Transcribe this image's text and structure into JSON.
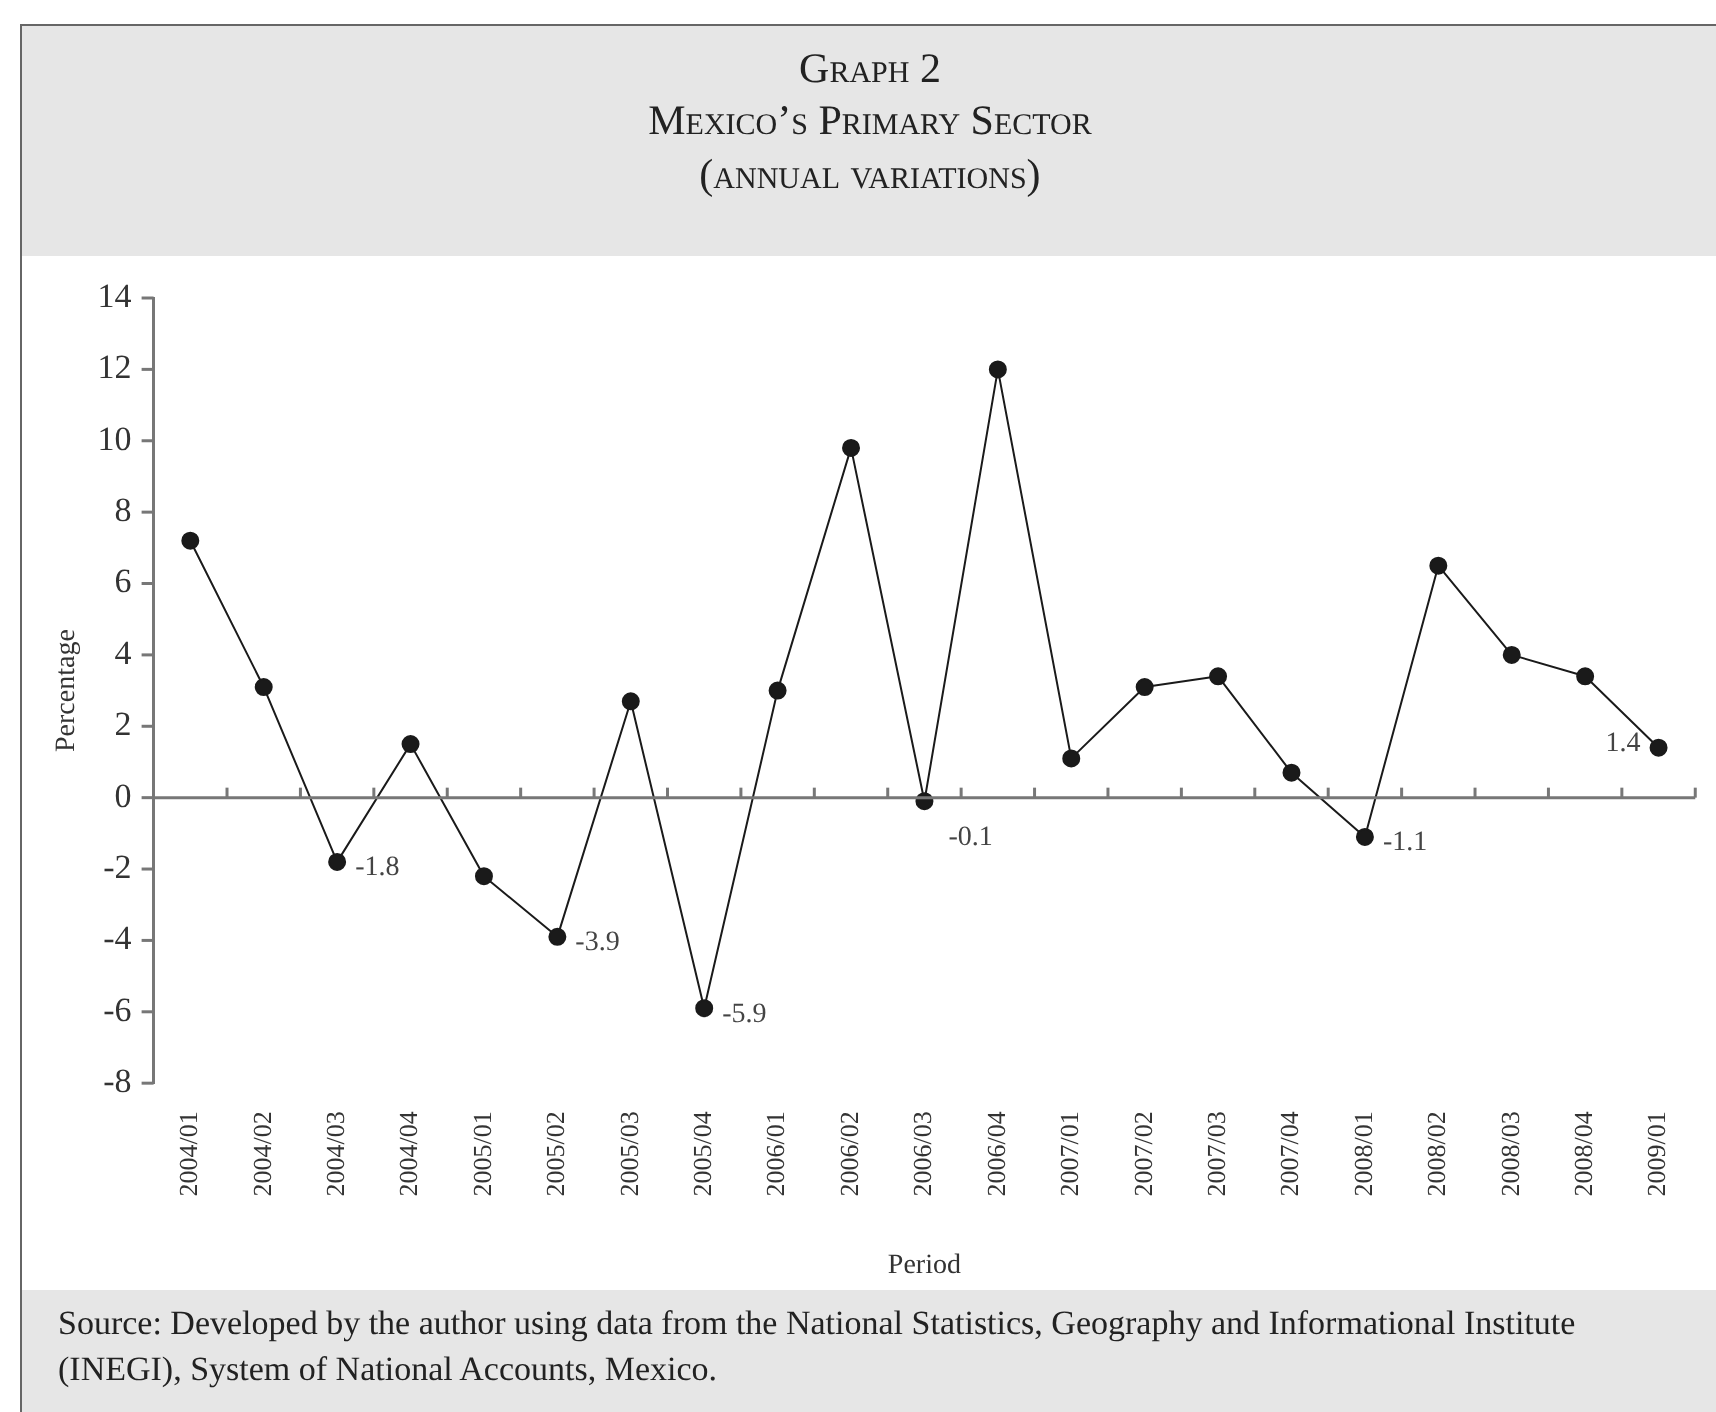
{
  "chart_data": {
    "type": "line",
    "title": "Graph 2",
    "subtitle": "Mexico’s Primary Sector\n(annual variations)",
    "xlabel": "Period",
    "ylabel": "Percentage",
    "categories": [
      "2004/01",
      "2004/02",
      "2004/03",
      "2004/04",
      "2005/01",
      "2005/02",
      "2005/03",
      "2005/04",
      "2006/01",
      "2006/02",
      "2006/03",
      "2006/04",
      "2007/01",
      "2007/02",
      "2007/03",
      "2007/04",
      "2008/01",
      "2008/02",
      "2008/03",
      "2008/04",
      "2009/01"
    ],
    "series": [
      {
        "color": "#1a1a1a",
        "values": [
          7.2,
          3.1,
          -1.8,
          1.5,
          -2.2,
          -3.9,
          2.7,
          -5.9,
          3.0,
          9.8,
          -0.1,
          12.0,
          1.1,
          3.1,
          3.4,
          0.7,
          -1.1,
          6.5,
          4.0,
          3.4,
          1.4
        ],
        "value_labels": [
          null,
          null,
          "-1.8",
          null,
          null,
          "-3.9",
          null,
          "-5.9",
          null,
          null,
          "-0.1",
          null,
          null,
          null,
          null,
          null,
          "-1.1",
          null,
          null,
          null,
          "1.4"
        ]
      }
    ],
    "ylim": [
      -8,
      14
    ],
    "yticks": [
      -8,
      -6,
      -4,
      -2,
      0,
      2,
      4,
      6,
      8,
      10,
      12,
      14
    ],
    "ref_lines": [
      {
        "axis": "y",
        "value": 0,
        "color": "#777777"
      }
    ],
    "grid": false,
    "legend": false,
    "marker": "circle",
    "line_style": "solid",
    "annotations": [
      "Source: Developed by the author using data from the National Statistics, Geography and Informational Institute (INEGI), System of National Accounts, Mexico."
    ]
  }
}
